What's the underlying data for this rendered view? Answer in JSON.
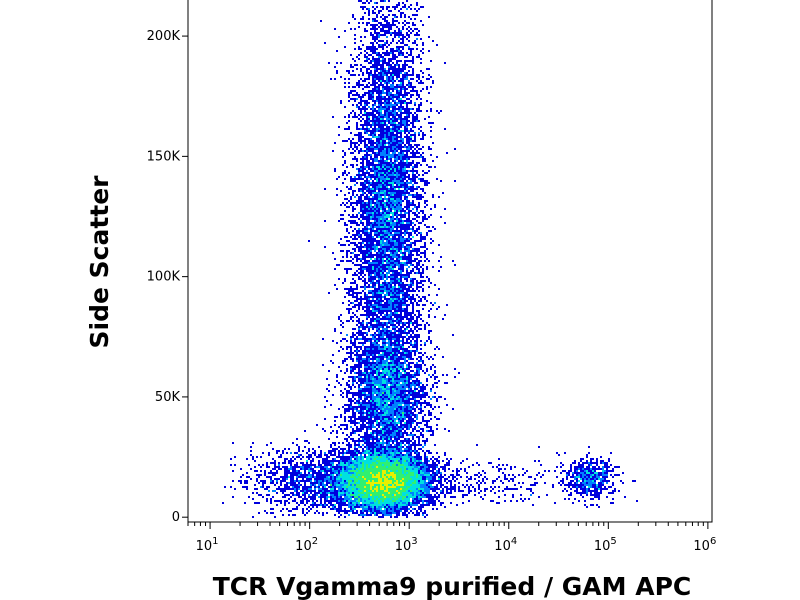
{
  "chart_data": {
    "type": "scatter",
    "subtype": "flow-cytometry-density-plot",
    "xlabel": "TCR Vgamma9 purified / GAM APC",
    "ylabel": "Side Scatter",
    "x_scale": "log",
    "y_scale": "linear",
    "xlim": [
      6,
      1100000
    ],
    "ylim": [
      -2000,
      215000
    ],
    "x_ticks": [
      {
        "value": 10,
        "base": "10",
        "exp": "1"
      },
      {
        "value": 100,
        "base": "10",
        "exp": "2"
      },
      {
        "value": 1000,
        "base": "10",
        "exp": "3"
      },
      {
        "value": 10000,
        "base": "10",
        "exp": "4"
      },
      {
        "value": 100000,
        "base": "10",
        "exp": "5"
      },
      {
        "value": 1000000,
        "base": "10",
        "exp": "6"
      }
    ],
    "y_ticks": [
      {
        "value": 0,
        "label": "0"
      },
      {
        "value": 50000,
        "label": "50K"
      },
      {
        "value": 100000,
        "label": "100K"
      },
      {
        "value": 150000,
        "label": "150K"
      },
      {
        "value": 200000,
        "label": "200K"
      }
    ],
    "grid": false,
    "legend": "none",
    "color_scale": [
      "#0000dd",
      "#0080ff",
      "#00e0e0",
      "#30f070",
      "#e8f000",
      "#ff8000",
      "#ff0000"
    ],
    "populations": [
      {
        "x_center": 550,
        "x_spread_decades": 0.22,
        "y_center": 15000,
        "y_spread": 6000,
        "weight": 0.42
      },
      {
        "x_center": 600,
        "x_spread_decades": 0.18,
        "y_center": 145000,
        "y_spread": 38000,
        "weight": 0.24
      },
      {
        "x_center": 600,
        "x_spread_decades": 0.2,
        "y_center": 50000,
        "y_spread": 14000,
        "weight": 0.14
      },
      {
        "x_center": 600,
        "x_spread_decades": 0.2,
        "y_center": 95000,
        "y_spread": 30000,
        "weight": 0.1
      },
      {
        "x_center": 120,
        "x_spread_decades": 0.35,
        "y_center": 15000,
        "y_spread": 7000,
        "weight": 0.06
      },
      {
        "x_center": 65000,
        "x_spread_decades": 0.12,
        "y_center": 16000,
        "y_spread": 4000,
        "weight": 0.025
      },
      {
        "x_center": 4000,
        "x_spread_decades": 0.5,
        "y_center": 15000,
        "y_spread": 5000,
        "weight": 0.015
      }
    ]
  }
}
